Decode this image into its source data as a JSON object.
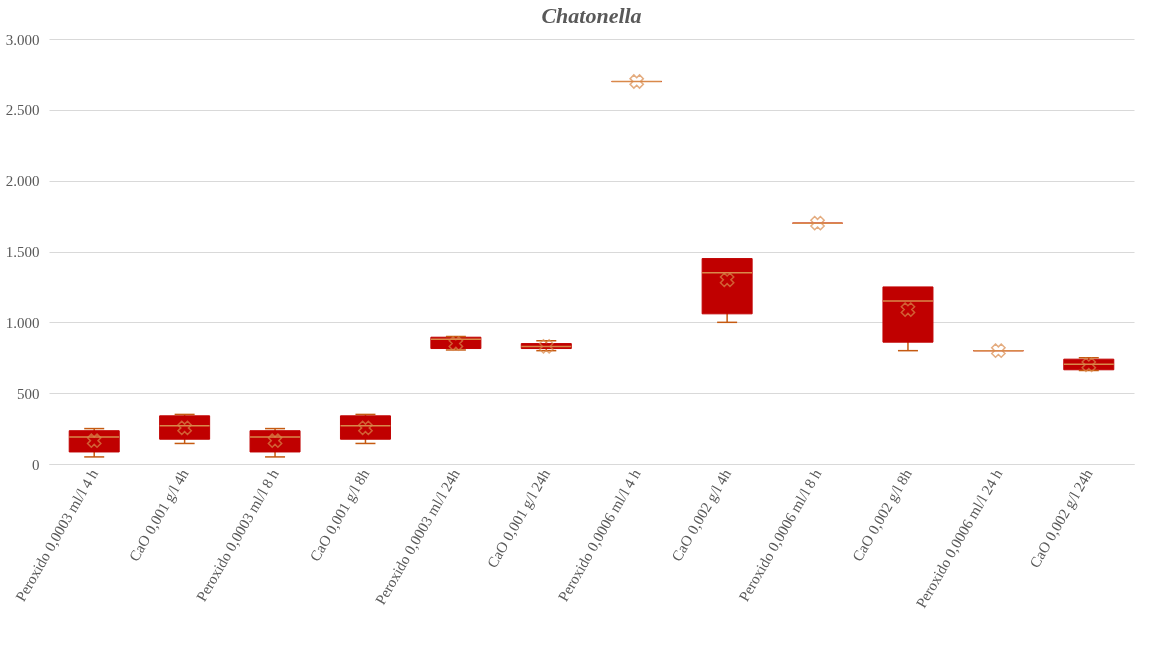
{
  "chart_data": {
    "type": "box",
    "title": "Chatonella",
    "categories": [
      "Peroxido 0,0003 ml/l 4 h",
      "CaO 0,001 g/l 4h",
      "Peroxido 0,0003 ml/l 8 h",
      "CaO 0,001 g/l 8h",
      "Peroxido 0,0003 ml/l 24h",
      "CaO 0,001 g/l 24h",
      "Peroxido 0,0006 ml/l 4 h",
      "CaO 0,002 g/l 4h",
      "Peroxido 0,0006 ml/l 8 h",
      "CaO 0,002 g/l 8h",
      "Peroxido 0,0006 ml/l 24 h",
      "CaO 0,002 g/l 24h"
    ],
    "series": [
      {
        "color": "#c00000",
        "boxes": [
          {
            "low": 50,
            "q1": 85,
            "median": 190,
            "q3": 235,
            "high": 250,
            "mean": 165
          },
          {
            "low": 145,
            "q1": 175,
            "median": 270,
            "q3": 340,
            "high": 350,
            "mean": 255
          },
          {
            "low": 50,
            "q1": 85,
            "median": 190,
            "q3": 235,
            "high": 250,
            "mean": 165
          },
          {
            "low": 145,
            "q1": 175,
            "median": 270,
            "q3": 340,
            "high": 350,
            "mean": 255
          },
          {
            "low": 805,
            "q1": 815,
            "median": 880,
            "q3": 895,
            "high": 900,
            "mean": 850
          },
          {
            "low": 800,
            "q1": 815,
            "median": 830,
            "q3": 850,
            "high": 870,
            "mean": 830
          },
          {
            "low": 2700,
            "q1": 2700,
            "median": 2700,
            "q3": 2700,
            "high": 2700,
            "mean": 2700
          },
          {
            "low": 1000,
            "q1": 1060,
            "median": 1350,
            "q3": 1450,
            "high": 1450,
            "mean": 1300
          },
          {
            "low": 1700,
            "q1": 1700,
            "median": 1700,
            "q3": 1700,
            "high": 1700,
            "mean": 1700
          },
          {
            "low": 800,
            "q1": 860,
            "median": 1150,
            "q3": 1250,
            "high": 1250,
            "mean": 1090
          },
          {
            "low": 800,
            "q1": 800,
            "median": 800,
            "q3": 800,
            "high": 800,
            "mean": 800
          },
          {
            "low": 660,
            "q1": 665,
            "median": 705,
            "q3": 740,
            "high": 750,
            "mean": 700
          }
        ]
      }
    ],
    "ylim": [
      0,
      3000
    ],
    "yticks": [
      {
        "value": 0,
        "label": "0"
      },
      {
        "value": 500,
        "label": "500"
      },
      {
        "value": 1000,
        "label": "1.000"
      },
      {
        "value": 1500,
        "label": "1.500"
      },
      {
        "value": 2000,
        "label": "2.000"
      },
      {
        "value": 2500,
        "label": "2.500"
      },
      {
        "value": 3000,
        "label": "3.000"
      }
    ],
    "grid": "y"
  }
}
